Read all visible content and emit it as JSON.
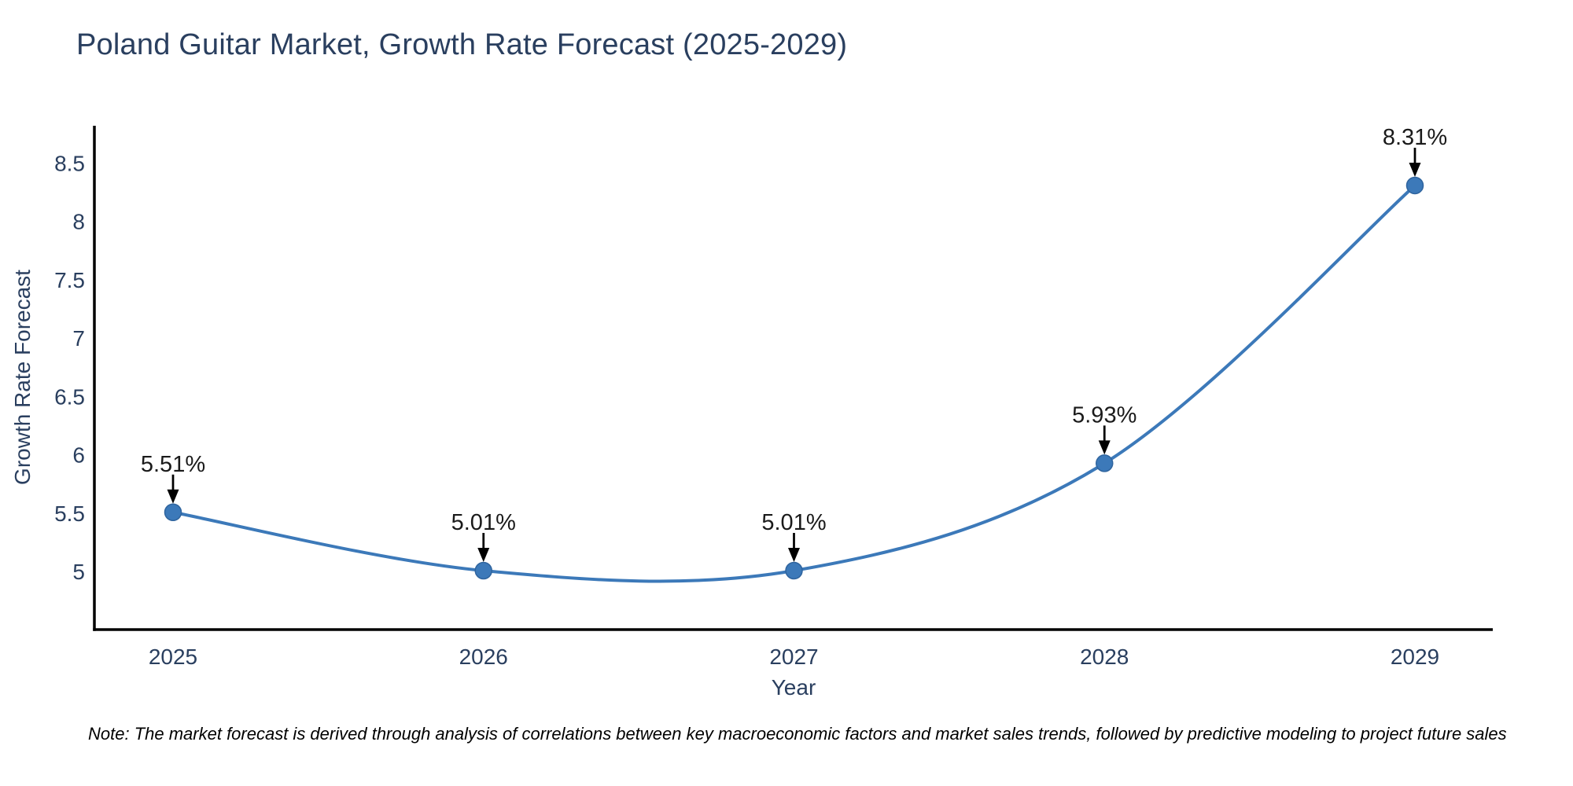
{
  "title": "Poland Guitar Market, Growth Rate Forecast (2025-2029)",
  "note": "Note: The market forecast is derived through analysis of correlations between key macroeconomic factors and market sales trends, followed by predictive modeling to project future sales",
  "chart_data": {
    "type": "line",
    "line_shape": "spline",
    "title": "Poland Guitar Market, Growth Rate Forecast (2025-2029)",
    "xlabel": "Year",
    "ylabel": "Growth Rate Forecast",
    "x": [
      2025,
      2026,
      2027,
      2028,
      2029
    ],
    "y": [
      5.51,
      5.01,
      5.01,
      5.93,
      8.31
    ],
    "point_labels": [
      "5.51%",
      "5.01%",
      "5.01%",
      "5.93%",
      "8.31%"
    ],
    "yticks": [
      "5",
      "5.5",
      "6",
      "6.5",
      "7",
      "7.5",
      "8",
      "8.5"
    ],
    "ylim": [
      4.51,
      8.82
    ],
    "grid": false,
    "legend": "none",
    "markers": true,
    "annotations_arrow": "down-arrow",
    "colors": {
      "line": "#3c79b9",
      "marker_fill": "#3c79b9",
      "marker_edge": "#2f649e",
      "axis_line": "#000000",
      "tick_text": "#2a3f5f",
      "axis_title_text": "#2a3f5f",
      "title_text": "#2a3f5f",
      "annotation_text": "#1a1a1a",
      "arrow": "#000000",
      "background": "#ffffff"
    }
  }
}
